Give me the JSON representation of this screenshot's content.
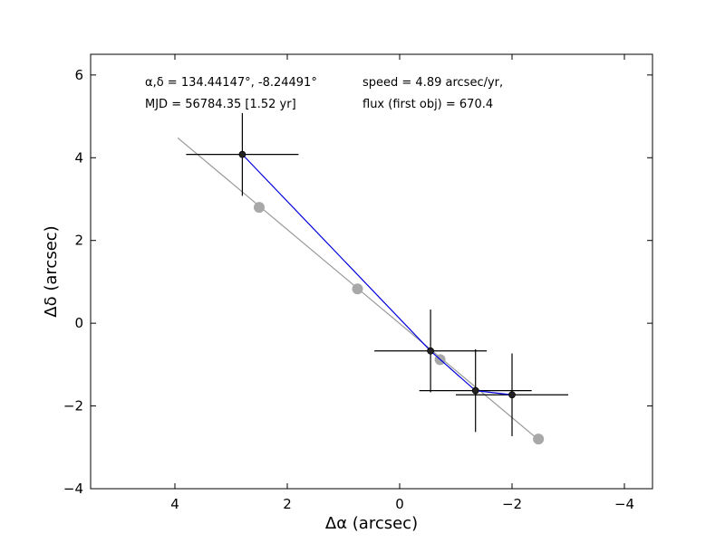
{
  "chart_data": {
    "type": "scatter",
    "xlabel": "Δα (arcsec)",
    "ylabel": "Δδ (arcsec)",
    "xlim": [
      5.5,
      -4.5
    ],
    "ylim": [
      -4,
      6.5
    ],
    "x_inverted": true,
    "xticks": [
      4,
      2,
      0,
      -2,
      -4
    ],
    "xtick_labels": [
      "4",
      "2",
      "0",
      "−2",
      "−4"
    ],
    "yticks": [
      -4,
      -2,
      0,
      2,
      4,
      6
    ],
    "ytick_labels": [
      "−4",
      "−2",
      "0",
      "2",
      "4",
      "6"
    ],
    "grid": false,
    "series": [
      {
        "marker": "circle",
        "color": "#0000dd",
        "marker_color": "#222222",
        "x": [
          2.8,
          -0.55,
          -1.35,
          -2.0
        ],
        "y": [
          4.08,
          -0.67,
          -1.63,
          -1.73
        ],
        "x_err": [
          1.0,
          1.0,
          1.0,
          1.0
        ],
        "y_err": [
          1.0,
          1.0,
          1.0,
          1.0
        ]
      },
      {
        "marker": "circle",
        "color": "#a8a8a8",
        "x": [
          2.5,
          -0.72,
          0.75,
          -2.47
        ],
        "y": [
          2.8,
          -0.88,
          0.83,
          -2.8
        ]
      },
      {
        "marker": "none",
        "color": "#999999",
        "x": [
          3.95,
          -2.5
        ],
        "y": [
          4.48,
          -2.85
        ]
      }
    ],
    "annotations": [
      "α,δ = 134.44147°, -8.24491°",
      "MJD = 56784.35 [1.52 yr]",
      "speed = 4.89 arcsec/yr,",
      "flux (first obj) = 670.4"
    ]
  }
}
